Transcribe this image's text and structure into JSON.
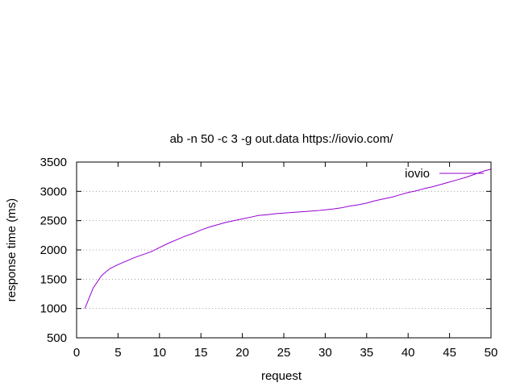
{
  "chart_data": {
    "type": "line",
    "title": "ab -n 50 -c 3 -g out.data https://iovio.com/",
    "xlabel": "request",
    "ylabel": "response time (ms)",
    "xlim": [
      0,
      50
    ],
    "ylim": [
      500,
      3500
    ],
    "xticks": [
      0,
      5,
      10,
      15,
      20,
      25,
      30,
      35,
      40,
      45,
      50
    ],
    "yticks": [
      500,
      1000,
      1500,
      2000,
      2500,
      3000,
      3500
    ],
    "grid": "horizontal dotted",
    "legend_position": "top-right",
    "series": [
      {
        "name": "iovio",
        "color": "#9400d3",
        "x": [
          1,
          2,
          3,
          4,
          5,
          6,
          7,
          8,
          9,
          10,
          11,
          12,
          13,
          14,
          15,
          16,
          17,
          18,
          19,
          20,
          21,
          22,
          23,
          24,
          25,
          26,
          27,
          28,
          29,
          30,
          31,
          32,
          33,
          34,
          35,
          36,
          37,
          38,
          39,
          40,
          41,
          42,
          43,
          44,
          45,
          46,
          47,
          48,
          49,
          50
        ],
        "values": [
          1000,
          1350,
          1560,
          1680,
          1750,
          1810,
          1870,
          1920,
          1970,
          2040,
          2110,
          2170,
          2230,
          2280,
          2340,
          2390,
          2430,
          2470,
          2500,
          2530,
          2560,
          2590,
          2600,
          2620,
          2630,
          2640,
          2650,
          2660,
          2670,
          2685,
          2700,
          2720,
          2750,
          2770,
          2800,
          2840,
          2870,
          2900,
          2940,
          2980,
          3010,
          3050,
          3080,
          3120,
          3160,
          3200,
          3240,
          3290,
          3340,
          3380
        ]
      }
    ]
  }
}
